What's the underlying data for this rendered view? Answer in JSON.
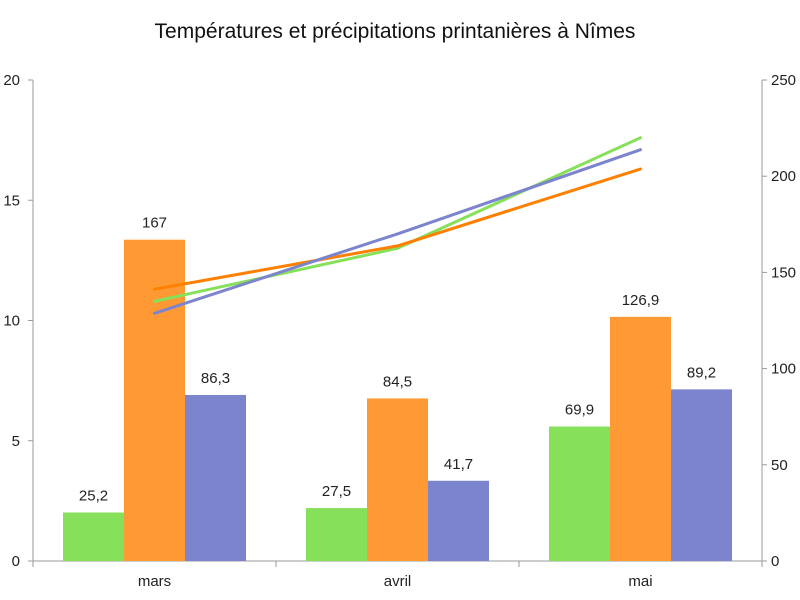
{
  "chart_data": {
    "type": "bar",
    "title": "Températures et précipitations printanières à Nîmes",
    "categories": [
      "mars",
      "avril",
      "mai"
    ],
    "bar_series": [
      {
        "values": [
          25.2,
          27.5,
          69.9
        ],
        "labels": [
          "25,2",
          "27,5",
          "69,9"
        ],
        "color": "#86e05a"
      },
      {
        "values": [
          167,
          84.5,
          126.9
        ],
        "labels": [
          "167",
          "84,5",
          "126,9"
        ],
        "color": "#ff9933"
      },
      {
        "values": [
          86.3,
          41.7,
          89.2
        ],
        "labels": [
          "86,3",
          "41,7",
          "89,2"
        ],
        "color": "#7b84cc"
      }
    ],
    "line_series": [
      {
        "values": [
          10.8,
          13.0,
          17.6
        ],
        "color": "#86e05a"
      },
      {
        "values": [
          11.3,
          13.1,
          16.3
        ],
        "color": "#ff8000"
      },
      {
        "values": [
          10.3,
          13.6,
          17.1
        ],
        "color": "#7b84cc"
      }
    ],
    "y_left": {
      "min": 0,
      "max": 20,
      "ticks": [
        "0",
        "5",
        "10",
        "15",
        "20"
      ]
    },
    "y_right": {
      "min": 0,
      "max": 250,
      "ticks": [
        "0",
        "50",
        "100",
        "150",
        "200",
        "250"
      ]
    },
    "grid": false,
    "legend": "none"
  }
}
